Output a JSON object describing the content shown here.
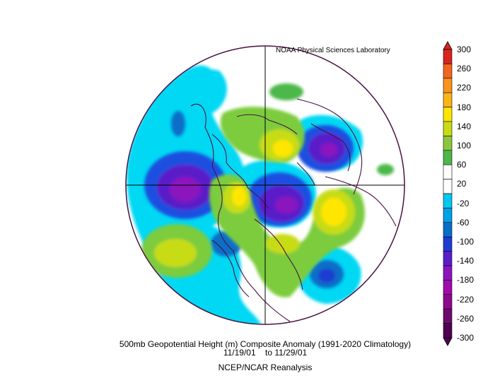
{
  "header": {
    "lab_credit": "NOAA Physical Sciences Laboratory"
  },
  "caption": {
    "line1": "500mb Geopotential Height (m) Composite Anomaly (1991-2020 Climatology)",
    "date_start": "11/19/01",
    "date_sep": "to",
    "date_end": "11/29/01",
    "source": "NCEP/NCAR Reanalysis"
  },
  "colorbar": {
    "ticks": [
      "300",
      "260",
      "220",
      "180",
      "140",
      "100",
      "60",
      "20",
      "-20",
      "-60",
      "-100",
      "-140",
      "-180",
      "-220",
      "-260",
      "-300"
    ],
    "colors": [
      "#d7261e",
      "#f26522",
      "#f7941d",
      "#fbb416",
      "#ffe600",
      "#c8dc14",
      "#8cc63e",
      "#4cb848",
      "#ffffff",
      "#ffffff",
      "#00c8f0",
      "#00a0e6",
      "#0a6ec8",
      "#1e3cd2",
      "#5a1ec8",
      "#8c14be",
      "#a00aaa",
      "#8c0a8c",
      "#6e0a6e",
      "#500050"
    ]
  },
  "map": {
    "projection": "north-polar-stereographic",
    "field": "500mb geopotential height anomaly",
    "outline_color": "#4b1040"
  }
}
